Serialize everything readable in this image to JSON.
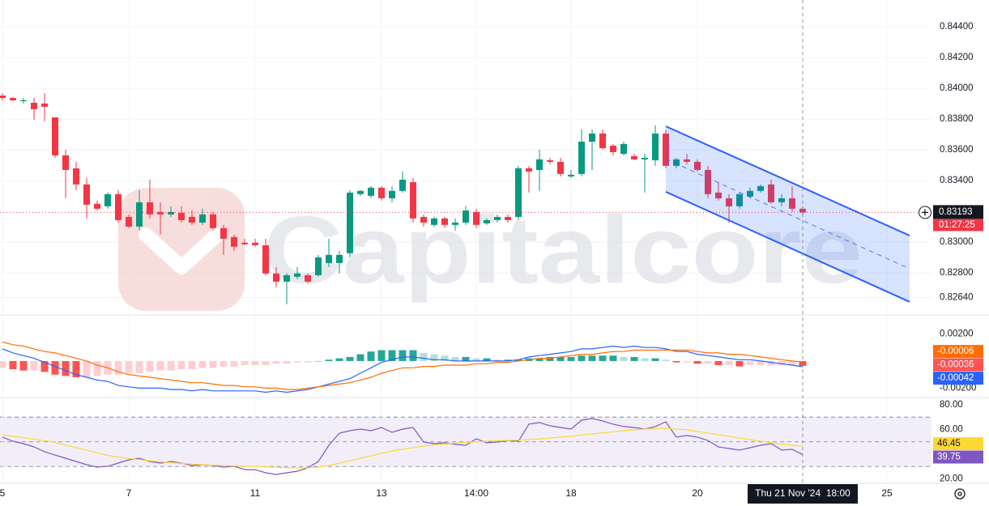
{
  "chart_data": [
    {
      "type": "candlestick",
      "watermark": "Capitalcore",
      "xlim": [
        -0.23,
        88.23
      ],
      "ylim": [
        0.82532,
        0.84574
      ],
      "yticks": [
        {
          "value": 0.8264,
          "label": "0.82640"
        },
        {
          "value": 0.828,
          "label": "0.82800"
        },
        {
          "value": 0.83,
          "label": "0.83000"
        },
        {
          "value": 0.834,
          "label": "0.83400"
        },
        {
          "value": 0.836,
          "label": "0.83600"
        },
        {
          "value": 0.838,
          "label": "0.83800"
        },
        {
          "value": 0.84,
          "label": "0.84000"
        },
        {
          "value": 0.842,
          "label": "0.84200"
        },
        {
          "value": 0.844,
          "label": "0.84400"
        }
      ],
      "grid": true,
      "up_color": "#089981",
      "down_color": "#f23645",
      "open": [
        0.83953,
        0.83937,
        0.83916,
        0.83906,
        0.83901,
        0.83811,
        0.83564,
        0.8348,
        0.83375,
        0.83249,
        0.83233,
        0.83312,
        0.83164,
        0.83101,
        0.83259,
        0.83196,
        0.8318,
        0.83191,
        0.83164,
        0.83127,
        0.8318,
        0.83091,
        0.83033,
        0.82996,
        0.82996,
        0.8298,
        0.82796,
        0.82743,
        0.82775,
        0.82785,
        0.82785,
        0.82864,
        0.82864,
        0.82928,
        0.83312,
        0.83301,
        0.83354,
        0.83285,
        0.83333,
        0.8339,
        0.83164,
        0.83112,
        0.83154,
        0.83112,
        0.83127,
        0.83196,
        0.83122,
        0.83143,
        0.83164,
        0.83164,
        0.8348,
        0.83469,
        0.83532,
        0.83522,
        0.83427,
        0.83443,
        0.83653,
        0.83706,
        0.83627,
        0.83574,
        0.83559,
        0.83538,
        0.83532,
        0.83706,
        0.83496,
        0.83538,
        0.83522,
        0.83469,
        0.83322,
        0.83285,
        0.83233,
        0.83296,
        0.83333,
        0.83375,
        0.83259,
        0.83285,
        0.83217
      ],
      "high": [
        0.83969,
        0.83943,
        0.83937,
        0.83937,
        0.83969,
        0.83811,
        0.83601,
        0.83522,
        0.83417,
        0.8327,
        0.83322,
        0.83338,
        0.8318,
        0.83338,
        0.83406,
        0.83259,
        0.83233,
        0.83233,
        0.83206,
        0.83217,
        0.83196,
        0.83112,
        0.83049,
        0.83022,
        0.83022,
        0.83022,
        0.82838,
        0.82796,
        0.82838,
        0.82796,
        0.82917,
        0.83022,
        0.82943,
        0.83338,
        0.83338,
        0.83364,
        0.83364,
        0.83364,
        0.83459,
        0.83417,
        0.8318,
        0.83164,
        0.83164,
        0.83154,
        0.83233,
        0.83217,
        0.83154,
        0.8318,
        0.8318,
        0.83496,
        0.83496,
        0.83601,
        0.83548,
        0.83548,
        0.83469,
        0.83732,
        0.83732,
        0.83732,
        0.83638,
        0.83653,
        0.83574,
        0.83574,
        0.83759,
        0.83732,
        0.83548,
        0.83574,
        0.83538,
        0.83496,
        0.8339,
        0.83312,
        0.83322,
        0.83354,
        0.83375,
        0.83406,
        0.83312,
        0.83364,
        0.83233
      ],
      "low": [
        0.83922,
        0.83916,
        0.83901,
        0.83796,
        0.83785,
        0.83548,
        0.83285,
        0.83338,
        0.83154,
        0.83206,
        0.83217,
        0.83127,
        0.83091,
        0.83075,
        0.83154,
        0.83049,
        0.83164,
        0.83127,
        0.83112,
        0.83112,
        0.83075,
        0.82917,
        0.82943,
        0.8298,
        0.8297,
        0.82785,
        0.82707,
        0.82596,
        0.82759,
        0.82733,
        0.82775,
        0.82838,
        0.82796,
        0.82901,
        0.83301,
        0.83285,
        0.8327,
        0.83259,
        0.83322,
        0.83127,
        0.83101,
        0.83101,
        0.83091,
        0.83075,
        0.83112,
        0.83091,
        0.83112,
        0.83127,
        0.83127,
        0.83143,
        0.83322,
        0.83333,
        0.83506,
        0.83427,
        0.83417,
        0.83427,
        0.83469,
        0.83601,
        0.83564,
        0.83564,
        0.83532,
        0.83322,
        0.83496,
        0.8348,
        0.8348,
        0.83506,
        0.83459,
        0.83285,
        0.8327,
        0.83127,
        0.83217,
        0.83285,
        0.83322,
        0.83249,
        0.83233,
        0.83196,
        0.8318
      ],
      "close": [
        0.83937,
        0.83922,
        0.83922,
        0.83864,
        0.8388,
        0.83564,
        0.83469,
        0.83375,
        0.83243,
        0.83217,
        0.83312,
        0.83143,
        0.83101,
        0.83259,
        0.8318,
        0.8318,
        0.83196,
        0.83143,
        0.83127,
        0.8318,
        0.83091,
        0.83022,
        0.8297,
        0.82986,
        0.8298,
        0.82796,
        0.82743,
        0.82785,
        0.82796,
        0.82743,
        0.82901,
        0.82917,
        0.82917,
        0.83322,
        0.83333,
        0.83354,
        0.83285,
        0.83333,
        0.83406,
        0.83154,
        0.83127,
        0.83154,
        0.83112,
        0.83127,
        0.83206,
        0.83112,
        0.83143,
        0.83164,
        0.83143,
        0.8348,
        0.83459,
        0.83538,
        0.83522,
        0.83443,
        0.83438,
        0.83653,
        0.83706,
        0.83611,
        0.83585,
        0.83638,
        0.83538,
        0.83548,
        0.83706,
        0.83496,
        0.83538,
        0.83522,
        0.83469,
        0.83312,
        0.83285,
        0.83233,
        0.83312,
        0.83333,
        0.83364,
        0.83259,
        0.83285,
        0.83217,
        0.83193
      ],
      "last_price": 0.83193,
      "countdown": "01:27:25",
      "channel": {
        "x": [
          63,
          86.15
        ],
        "upper": [
          0.83753,
          0.83043
        ],
        "lower": [
          0.83327,
          0.82612
        ],
        "color": "#2962ff"
      }
    },
    {
      "type": "macd",
      "xlim": [
        -0.23,
        88.23
      ],
      "ylim": [
        -0.00263,
        0.00334
      ],
      "yticks": [
        {
          "value": -0.002,
          "label": "-0.00200"
        },
        {
          "value": 0.002,
          "label": "0.00200"
        }
      ],
      "series": [
        {
          "type": "bar",
          "colors": {
            "pos_up": "#26a69a",
            "pos_down": "#b2dfdb",
            "neg_up": "#ffcdd2",
            "neg_down": "#ff5252"
          },
          "values": [
            -0.0005,
            -0.0006,
            -0.0007,
            -0.0007,
            -0.0008,
            -0.001,
            -0.0011,
            -0.0012,
            -0.0012,
            -0.0011,
            -0.001,
            -0.001,
            -0.0009,
            -0.0009,
            -0.0008,
            -0.0007,
            -0.0007,
            -0.0006,
            -0.0006,
            -0.0005,
            -0.0005,
            -0.0004,
            -0.0004,
            -0.0003,
            -0.0003,
            -0.0003,
            -0.0002,
            -0.0002,
            -0.0001,
            -0.0001,
            0,
            0.0001,
            0.0002,
            0.0003,
            0.0005,
            0.0007,
            0.0008,
            0.0008,
            0.0008,
            0.0008,
            0.0006,
            0.0005,
            0.0004,
            0.0003,
            0.0003,
            0.0002,
            0.0002,
            0.0001,
            0.0001,
            0.0001,
            0.0002,
            0.0002,
            0.0003,
            0.0003,
            0.0003,
            0.0004,
            0.0004,
            0.0004,
            0.0004,
            0.0003,
            0.0003,
            0.0002,
            0.0002,
            0.0001,
            -0.0001,
            -0.0001,
            -0.0002,
            -0.0002,
            -0.0003,
            -0.0003,
            -0.0004,
            -0.0003,
            -0.0003,
            -0.0003,
            -0.0003,
            -0.0003,
            -0.00036
          ]
        },
        {
          "type": "line",
          "color": "#2962ff",
          "values": [
            0.0009,
            0.0006,
            0.0004,
            0.0002,
            -0.0001,
            -0.0004,
            -0.0007,
            -0.001,
            -0.0012,
            -0.0014,
            -0.0015,
            -0.0018,
            -0.0019,
            -0.002,
            -0.002,
            -0.002,
            -0.0021,
            -0.0021,
            -0.0022,
            -0.0021,
            -0.0022,
            -0.0022,
            -0.0022,
            -0.0022,
            -0.0022,
            -0.0023,
            -0.0022,
            -0.0023,
            -0.0022,
            -0.0021,
            -0.0019,
            -0.0017,
            -0.0015,
            -0.0013,
            -0.0009,
            -0.0005,
            -0.0001,
            0.0001,
            0.0003,
            0.0003,
            0.0002,
            0.0001,
            0.0001,
            0,
            0,
            0,
            0,
            0,
            0,
            0.0001,
            0.0003,
            0.0004,
            0.0005,
            0.0006,
            0.0007,
            0.0009,
            0.0009,
            0.001,
            0.0011,
            0.001,
            0.0011,
            0.001,
            0.001,
            0.0009,
            0.0007,
            0.0007,
            0.0005,
            0.0004,
            0.0003,
            0.0002,
            0.0001,
            0.0001,
            0,
            -0.0001,
            -0.0002,
            -0.0003,
            -0.00042
          ]
        },
        {
          "type": "line",
          "color": "#ff6d00",
          "values": [
            0.0014,
            0.0012,
            0.0011,
            0.0009,
            0.0007,
            0.0006,
            0.0004,
            0.0002,
            0,
            -0.0003,
            -0.0005,
            -0.0008,
            -0.001,
            -0.0011,
            -0.0012,
            -0.0013,
            -0.0014,
            -0.0015,
            -0.0016,
            -0.0016,
            -0.0017,
            -0.0018,
            -0.0018,
            -0.0019,
            -0.0019,
            -0.002,
            -0.002,
            -0.0021,
            -0.0021,
            -0.002,
            -0.0019,
            -0.0018,
            -0.0017,
            -0.0016,
            -0.0014,
            -0.0012,
            -0.0009,
            -0.0007,
            -0.0005,
            -0.0005,
            -0.0004,
            -0.0004,
            -0.0003,
            -0.0003,
            -0.0003,
            -0.0002,
            -0.0002,
            -0.0001,
            -0.0001,
            0,
            0.0001,
            0.0002,
            0.0002,
            0.0003,
            0.0004,
            0.0005,
            0.0005,
            0.0006,
            0.0007,
            0.0007,
            0.0008,
            0.0008,
            0.0008,
            0.0008,
            0.0008,
            0.0008,
            0.0007,
            0.0006,
            0.0006,
            0.0005,
            0.0005,
            0.0004,
            0.0003,
            0.0002,
            0.0001,
            0,
            -6e-05
          ]
        }
      ]
    },
    {
      "type": "rsi",
      "xlim": [
        -0.23,
        88.23
      ],
      "ylim": [
        16.4,
        85.2
      ],
      "yticks": [
        {
          "value": 20,
          "label": "20.00"
        },
        {
          "value": 60,
          "label": "60.00"
        },
        {
          "value": 80,
          "label": "80.00"
        }
      ],
      "levels": [
        70,
        50,
        30
      ],
      "band_color": "#7e57c2",
      "series": [
        {
          "type": "line",
          "color": "#7e57c2",
          "values": [
            53.8,
            50.5,
            48.5,
            45.9,
            42,
            39.3,
            36.7,
            34.1,
            31.5,
            29.5,
            30.2,
            32.8,
            35.4,
            36.7,
            34.1,
            32.8,
            34.1,
            32.8,
            30.8,
            31.5,
            30.8,
            29.5,
            30.2,
            27.5,
            27.5,
            24.9,
            23.6,
            24.9,
            26.2,
            28.9,
            34.1,
            47.2,
            57,
            59,
            60.3,
            59,
            61.6,
            57.7,
            60.3,
            61.6,
            49.8,
            48.5,
            49.2,
            47.9,
            47.2,
            52.5,
            49.2,
            49.8,
            51.1,
            50.5,
            64.3,
            65.6,
            63,
            61.6,
            60.3,
            67.5,
            68.9,
            66.9,
            64.3,
            62.3,
            61.6,
            60.3,
            62.3,
            66.2,
            53.8,
            55.1,
            53.8,
            51.1,
            45.9,
            44.6,
            43.3,
            45.2,
            47.2,
            48.5,
            43.3,
            43.9,
            39.75
          ]
        },
        {
          "type": "line",
          "color": "#fdd835",
          "values": [
            55.7,
            54.5,
            53.3,
            52.1,
            50.9,
            49.5,
            47.4,
            45.3,
            43.2,
            41.1,
            39,
            37.6,
            36.5,
            35.6,
            34.7,
            33.8,
            33.1,
            32.5,
            32,
            31.5,
            31.1,
            30.8,
            30.5,
            30.2,
            30,
            29.7,
            29.4,
            29.1,
            28.9,
            28.9,
            29.5,
            30.8,
            32.8,
            34.7,
            36.7,
            38.7,
            40.6,
            42.6,
            44,
            45.3,
            46.6,
            47.5,
            48.2,
            48.9,
            49.5,
            50.1,
            50.5,
            50.8,
            51.1,
            51.4,
            51.8,
            52.4,
            53.1,
            53.8,
            54.5,
            55.5,
            56.4,
            57.3,
            58.2,
            59,
            59.7,
            60.3,
            60.6,
            61,
            60.3,
            59.7,
            58.4,
            57,
            55.7,
            54.4,
            53.1,
            51.8,
            50.5,
            49.2,
            48.2,
            47.2,
            46.45
          ]
        }
      ],
      "xticks": [
        {
          "value": 0,
          "label": "5"
        },
        {
          "value": 12,
          "label": "7"
        },
        {
          "value": 24,
          "label": "11"
        },
        {
          "value": 36,
          "label": "13"
        },
        {
          "value": 45,
          "label": "14:00"
        },
        {
          "value": 54,
          "label": "18"
        },
        {
          "value": 66,
          "label": "20"
        },
        {
          "value": 84,
          "label": "25"
        }
      ],
      "crosshair": {
        "value": 76,
        "label": "Thu 21 Nov '24  18:00"
      }
    }
  ]
}
